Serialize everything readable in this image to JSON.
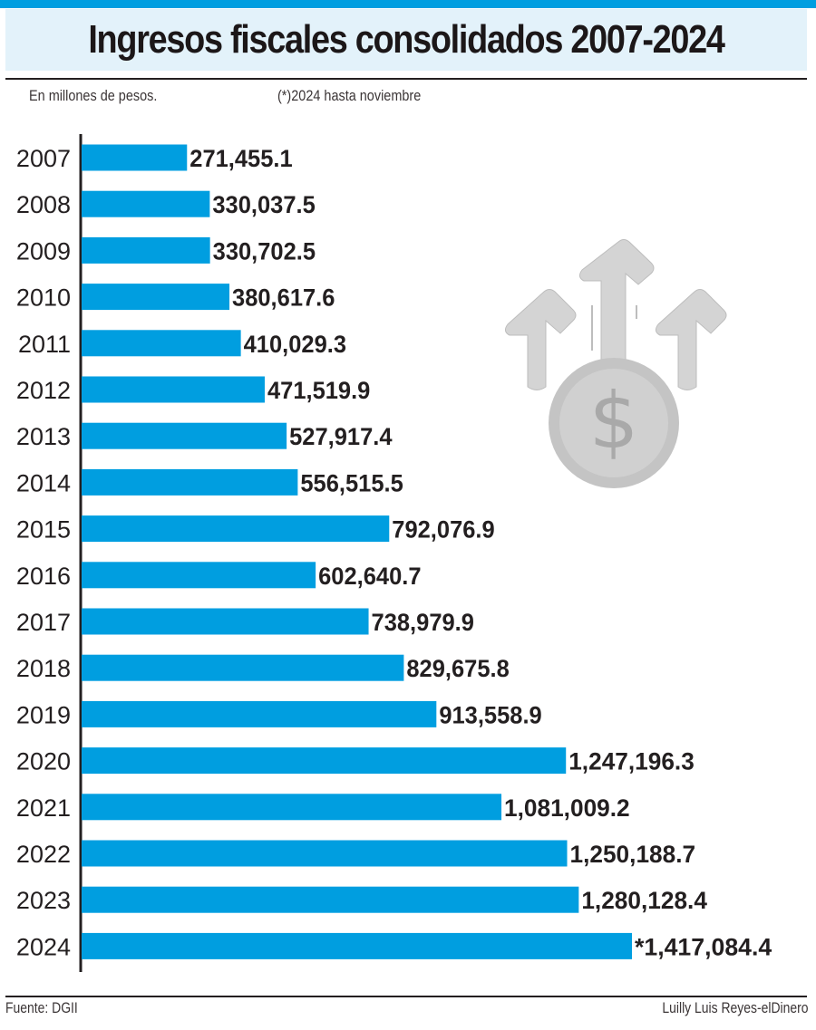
{
  "header": {
    "title": "Ingresos fiscales consolidados 2007-2024",
    "unit_note": "En millones de pesos.",
    "footnote": "(*)2024 hasta noviembre"
  },
  "footer": {
    "source": "Fuente: DGII",
    "credit": "Luilly Luis Reyes-elDinero"
  },
  "colors": {
    "bar": "#009ee0",
    "title_band": "#e3f2fa",
    "text": "#231f20",
    "icon": "#c9c9c9"
  },
  "illustration": {
    "icon": "dollar-coin-arrows-up-icon"
  },
  "chart_data": {
    "type": "bar",
    "orientation": "horizontal",
    "title": "Ingresos fiscales consolidados 2007-2024",
    "xlabel": "",
    "ylabel": "",
    "unit": "millones de pesos",
    "annotations": [
      "(*)2024 hasta noviembre"
    ],
    "categories": [
      "2007",
      "2008",
      "2009",
      "2010",
      "2011",
      "2012",
      "2013",
      "2014",
      "2015",
      "2016",
      "2017",
      "2018",
      "2019",
      "2020",
      "2021",
      "2022",
      "2023",
      "2024"
    ],
    "values": [
      271455.1,
      330037.5,
      330702.5,
      380617.6,
      410029.3,
      471519.9,
      527917.4,
      556515.5,
      792076.9,
      602640.7,
      738979.9,
      829675.8,
      913558.9,
      1247196.3,
      1081009.2,
      1250188.7,
      1280128.4,
      1417084.4
    ],
    "value_labels": [
      "271,455.1",
      "330,037.5",
      "330,702.5",
      "380,617.6",
      "410,029.3",
      "471,519.9",
      "527,917.4",
      "556,515.5",
      "792,076.9",
      "602,640.7",
      "738,979.9",
      "829,675.8",
      "913,558.9",
      "1,247,196.3",
      "1,081,009.2",
      "1,250,188.7",
      "1,280,128.4",
      "*1,417,084.4"
    ],
    "xlim": [
      0,
      1417084.4
    ],
    "grid": false,
    "legend": "none"
  }
}
